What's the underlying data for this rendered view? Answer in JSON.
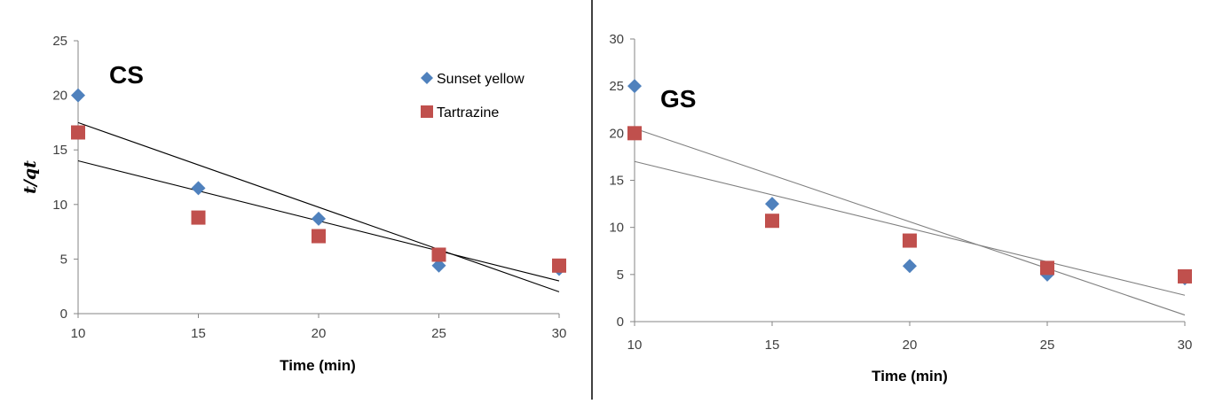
{
  "chart_data": [
    {
      "type": "scatter",
      "title": "CS",
      "xlabel": "Time (min)",
      "ylabel": "t/qt",
      "xlim": [
        10,
        30
      ],
      "ylim": [
        0,
        25
      ],
      "xticks": [
        "10",
        "15",
        "20",
        "25",
        "30"
      ],
      "yticks": [
        "0",
        "5",
        "10",
        "15",
        "20",
        "25"
      ],
      "legend": {
        "placement": "top-right",
        "entries": [
          "Sunset yellow",
          "Tartrazine"
        ]
      },
      "series": [
        {
          "name": "Sunset yellow",
          "marker": "diamond",
          "color": "#4F81BD",
          "x": [
            10,
            15,
            20,
            25,
            30
          ],
          "y": [
            20,
            11.5,
            8.7,
            4.4,
            4.1
          ],
          "trendline": [
            [
              10,
              14.0
            ],
            [
              30,
              3.0
            ]
          ]
        },
        {
          "name": "Tartrazine",
          "marker": "square",
          "color": "#C0504D",
          "x": [
            10,
            15,
            20,
            25,
            30
          ],
          "y": [
            16.6,
            8.8,
            7.1,
            5.4,
            4.4
          ],
          "trendline": [
            [
              10,
              17.5
            ],
            [
              30,
              2.0
            ]
          ]
        }
      ],
      "trendline_color": "#000000",
      "grid": false
    },
    {
      "type": "scatter",
      "title": "GS",
      "xlabel": "Time (min)",
      "ylabel": "",
      "xlim": [
        10,
        30
      ],
      "ylim": [
        0,
        30
      ],
      "xticks": [
        "10",
        "15",
        "20",
        "25",
        "30"
      ],
      "yticks": [
        "0",
        "5",
        "10",
        "15",
        "20",
        "25",
        "30"
      ],
      "series": [
        {
          "name": "Sunset yellow",
          "marker": "diamond",
          "color": "#4F81BD",
          "x": [
            10,
            15,
            20,
            25,
            30
          ],
          "y": [
            25,
            12.5,
            5.9,
            5.0,
            4.6
          ],
          "trendline": [
            [
              10,
              17.0
            ],
            [
              30,
              2.8
            ]
          ]
        },
        {
          "name": "Tartrazine",
          "marker": "square",
          "color": "#C0504D",
          "x": [
            10,
            15,
            20,
            25,
            30
          ],
          "y": [
            20,
            10.7,
            8.6,
            5.7,
            4.8
          ],
          "trendline": [
            [
              10,
              20.5
            ],
            [
              30,
              0.7
            ]
          ]
        }
      ],
      "trendline_color": "#808080",
      "grid": false
    }
  ]
}
